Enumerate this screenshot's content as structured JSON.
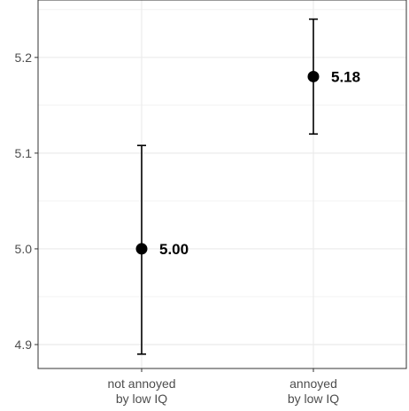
{
  "chart_data": {
    "type": "scatter",
    "categories": [
      [
        "not annoyed",
        "by low IQ"
      ],
      [
        "annoyed",
        "by low IQ"
      ]
    ],
    "points": [
      {
        "value": 5.0,
        "ci_low": 4.89,
        "ci_high": 5.108,
        "label": "5.00"
      },
      {
        "value": 5.18,
        "ci_low": 5.12,
        "ci_high": 5.24,
        "label": "5.18"
      }
    ],
    "y_ticks": [
      4.9,
      5.0,
      5.1,
      5.2
    ],
    "y_tick_labels": [
      "4.9",
      "5.0",
      "5.1",
      "5.2"
    ],
    "ylim": [
      4.875,
      5.26
    ],
    "title": "",
    "xlabel": "",
    "ylabel": "",
    "grid": true,
    "colors": {
      "point": "#000000",
      "grid": "#ebebeb",
      "axis_text": "#4d4d4d",
      "panel_border": "#333333"
    }
  }
}
